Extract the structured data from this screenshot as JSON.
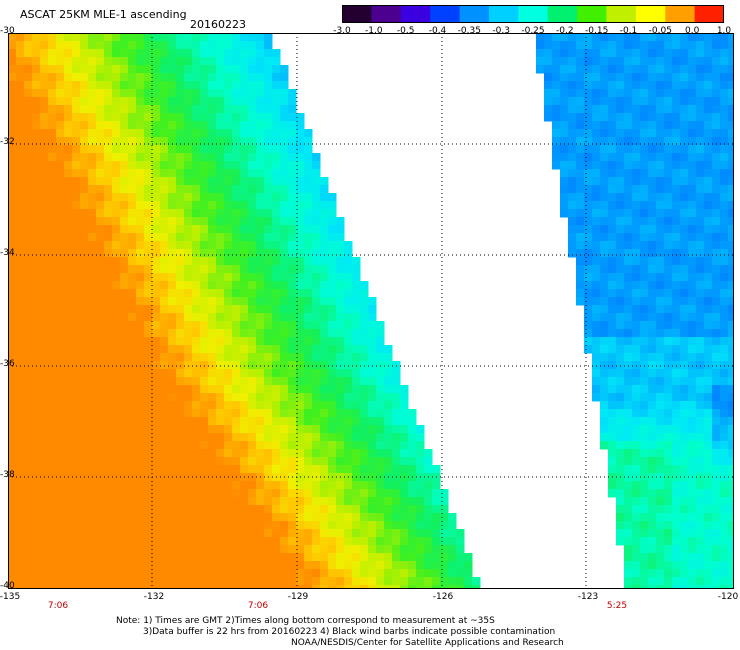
{
  "title": "ASCAT 25KM MLE-1 ascending",
  "date": "20160223",
  "colorbar": {
    "ticks": [
      "-3.0",
      "-1.0",
      "-0.5",
      "-0.4",
      "-0.35",
      "-0.3",
      "-0.25",
      "-0.2",
      "-0.15",
      "-0.1",
      "-0.05",
      "0.0",
      "1.0"
    ],
    "colors": [
      "#240030",
      "#4b0090",
      "#3a00e0",
      "#0040ff",
      "#0090ff",
      "#00d0ff",
      "#00ffe0",
      "#00f070",
      "#40f000",
      "#c0f000",
      "#ffff00",
      "#ffa000",
      "#ff2000"
    ]
  },
  "lat_labels": [
    "-30",
    "-32",
    "-34",
    "-36",
    "-38",
    "-40"
  ],
  "lon_labels": [
    "-135",
    "-132",
    "-129",
    "-126",
    "-123",
    "-120"
  ],
  "time_labels": [
    "7:06",
    "7:06",
    "5:25"
  ],
  "notes": [
    "Note: 1) Times are GMT 2)Times along bottom correspond to measurement at ~35S",
    "3)Data buffer is 22 hrs from 20160223 4) Black wind barbs indicate possible contamination",
    "NOAA/NESDIS/Center for Satellite Applications and Research"
  ]
}
